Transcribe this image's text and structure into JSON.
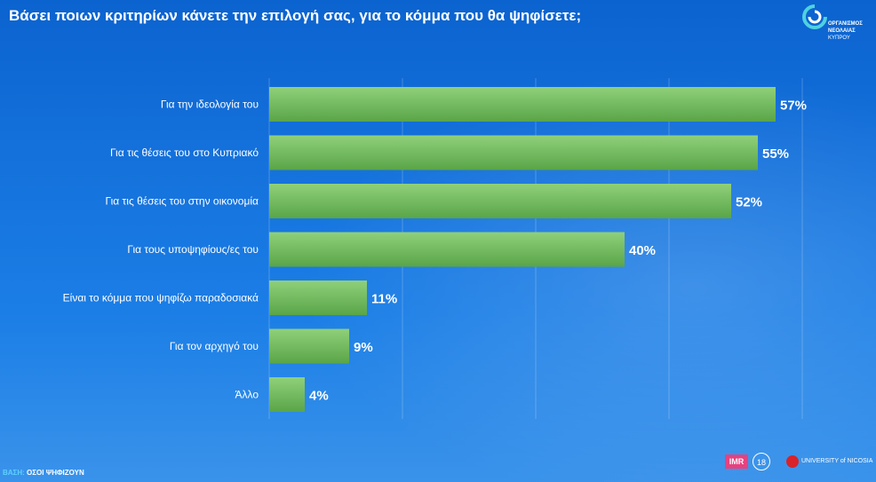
{
  "title": "Βάσει ποιων κριτηρίων κάνετε την επιλογή σας, για το κόμμα που θα ψηφίσετε;",
  "org_logo": {
    "line1": "ΟΡΓΑΝΙΣΜΟΣ",
    "line2": "ΝΕΟΛΑΙΑΣ",
    "line3": "ΚΥΠΡΟΥ"
  },
  "footer": {
    "base_key": "ΒΑΣΗ:",
    "base_value": "ΟΣΟΙ ΨΗΦΙΖΟΥΝ",
    "imr_label": "IMR",
    "seal_label": "18",
    "university_label": "UNIVERSITY of NICOSIA"
  },
  "colors": {
    "bar_top": "#8fd07a",
    "bar_bottom": "#5aa548",
    "background": "#1572dc"
  },
  "chart_data": {
    "type": "bar",
    "orientation": "horizontal",
    "categories": [
      "Για την ιδεολογία του",
      "Για τις θέσεις του στο Κυπριακό",
      "Για τις θέσεις του στην οικονομία",
      "Για τους υποψηφίους/ες του",
      "Είναι το κόμμα που ψηφίζω παραδοσιακά",
      "Για τον αρχηγό του",
      "Άλλο"
    ],
    "values": [
      57,
      55,
      52,
      40,
      11,
      9,
      4
    ],
    "value_labels": [
      "57%",
      "55%",
      "52%",
      "40%",
      "11%",
      "9%",
      "4%"
    ],
    "xlim": [
      0,
      100
    ],
    "grid": true
  }
}
